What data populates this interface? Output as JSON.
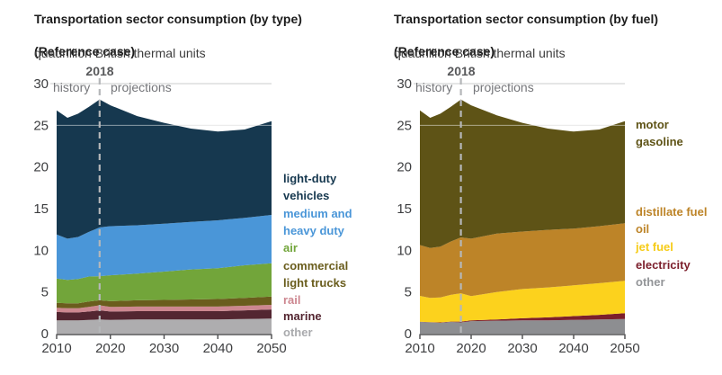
{
  "charts": [
    {
      "title_line1": "Transportation sector consumption (by type)",
      "title_line2": "(Reference case)",
      "subtitle": "quadrillion British thermal units",
      "annotations": {
        "marker_year": "2018",
        "history_label": "history",
        "projections_label": "projections"
      },
      "legend": [
        {
          "label": "light-duty vehicles",
          "color": "#16384f"
        },
        {
          "label": "medium and heavy duty",
          "color": "#4a96d8"
        },
        {
          "label": "air",
          "color": "#72a53a"
        },
        {
          "label": "commercial light trucks",
          "color": "#6a5d1d"
        },
        {
          "label": "rail",
          "color": "#cd8790"
        },
        {
          "label": "marine",
          "color": "#542631"
        },
        {
          "label": "other",
          "color": "#a9aaad"
        }
      ]
    },
    {
      "title_line1": "Transportation sector consumption (by fuel)",
      "title_line2": "(Reference case)",
      "subtitle": "quadrillion British thermal units",
      "annotations": {
        "marker_year": "2018",
        "history_label": "history",
        "projections_label": "projections"
      },
      "legend": [
        {
          "label": "motor gasoline",
          "color": "#5e5316"
        },
        {
          "label": "distillate fuel oil",
          "color": "#bd8428"
        },
        {
          "label": "jet fuel",
          "color": "#f6cc18"
        },
        {
          "label": "electricity",
          "color": "#7c1f2c"
        },
        {
          "label": "other",
          "color": "#939598"
        }
      ]
    }
  ],
  "chart_data": [
    {
      "type": "area",
      "stacked": true,
      "title": "Transportation sector consumption (by type) (Reference case)",
      "units_label": "quadrillion British thermal units",
      "x": [
        2010,
        2012,
        2014,
        2016,
        2018,
        2020,
        2025,
        2030,
        2035,
        2040,
        2045,
        2050
      ],
      "xlim": [
        2010,
        2050
      ],
      "ylim": [
        0,
        30
      ],
      "x_ticks": [
        2010,
        2020,
        2030,
        2040,
        2050
      ],
      "x_tick_labels": [
        "2010",
        "2020",
        "2030",
        "2040",
        "2050"
      ],
      "y_ticks": [
        0,
        5,
        10,
        15,
        20,
        25,
        30
      ],
      "y_tick_labels": [
        "0",
        "5",
        "10",
        "15",
        "20",
        "25",
        "30"
      ],
      "marker_x": 2018,
      "grid": "horizontal",
      "legend_position": "right",
      "series": [
        {
          "name": "other",
          "color": "#aeadaf",
          "values": [
            1.6,
            1.6,
            1.6,
            1.65,
            1.7,
            1.65,
            1.7,
            1.7,
            1.7,
            1.7,
            1.75,
            1.8
          ]
        },
        {
          "name": "marine",
          "color": "#532631",
          "values": [
            1.0,
            0.95,
            0.95,
            1.0,
            1.1,
            1.0,
            1.0,
            1.0,
            1.0,
            1.0,
            1.05,
            1.1
          ]
        },
        {
          "name": "rail",
          "color": "#cd8790",
          "values": [
            0.5,
            0.5,
            0.5,
            0.55,
            0.6,
            0.55,
            0.55,
            0.55,
            0.55,
            0.55,
            0.55,
            0.55
          ]
        },
        {
          "name": "commercial light trucks",
          "color": "#6a5d1d",
          "values": [
            0.6,
            0.6,
            0.6,
            0.65,
            0.6,
            0.7,
            0.75,
            0.8,
            0.85,
            0.9,
            0.95,
            1.0
          ]
        },
        {
          "name": "air",
          "color": "#72a53a",
          "values": [
            2.9,
            2.8,
            2.9,
            3.0,
            2.9,
            3.1,
            3.2,
            3.4,
            3.6,
            3.7,
            3.9,
            4.0
          ]
        },
        {
          "name": "medium and heavy duty",
          "color": "#4a96d8",
          "values": [
            5.3,
            4.95,
            5.05,
            5.35,
            5.85,
            5.9,
            5.8,
            5.75,
            5.7,
            5.75,
            5.7,
            5.8
          ]
        },
        {
          "name": "light-duty vehicles",
          "color": "#16384f",
          "values": [
            14.9,
            14.5,
            14.8,
            15.0,
            15.35,
            14.5,
            13.1,
            12.1,
            11.2,
            10.65,
            10.6,
            11.25
          ]
        }
      ]
    },
    {
      "type": "area",
      "stacked": true,
      "title": "Transportation sector consumption (by fuel) (Reference case)",
      "units_label": "quadrillion British thermal units",
      "x": [
        2010,
        2012,
        2014,
        2016,
        2018,
        2020,
        2025,
        2030,
        2035,
        2040,
        2045,
        2050
      ],
      "xlim": [
        2010,
        2050
      ],
      "ylim": [
        0,
        30
      ],
      "x_ticks": [
        2010,
        2020,
        2030,
        2040,
        2050
      ],
      "x_tick_labels": [
        "2010",
        "2020",
        "2030",
        "2040",
        "2050"
      ],
      "y_ticks": [
        0,
        5,
        10,
        15,
        20,
        25,
        30
      ],
      "y_tick_labels": [
        "0",
        "5",
        "10",
        "15",
        "20",
        "25",
        "30"
      ],
      "marker_x": 2018,
      "grid": "horizontal",
      "legend_position": "right",
      "series": [
        {
          "name": "other",
          "color": "#8d8e91",
          "values": [
            1.4,
            1.35,
            1.3,
            1.4,
            1.35,
            1.5,
            1.55,
            1.6,
            1.6,
            1.65,
            1.7,
            1.75
          ]
        },
        {
          "name": "electricity",
          "color": "#7c1f2c",
          "values": [
            0.03,
            0.03,
            0.05,
            0.05,
            0.1,
            0.1,
            0.15,
            0.25,
            0.35,
            0.45,
            0.55,
            0.7
          ]
        },
        {
          "name": "jet fuel",
          "color": "#fcd21d",
          "values": [
            3.1,
            2.9,
            3.0,
            3.2,
            3.4,
            2.9,
            3.3,
            3.5,
            3.6,
            3.7,
            3.8,
            3.9
          ]
        },
        {
          "name": "distillate fuel oil",
          "color": "#bd8428",
          "values": [
            6.1,
            6.0,
            6.1,
            6.4,
            6.7,
            6.9,
            7.0,
            6.9,
            6.9,
            6.8,
            6.85,
            6.9
          ]
        },
        {
          "name": "motor gasoline",
          "color": "#5e5316",
          "values": [
            16.17,
            15.62,
            15.95,
            16.15,
            16.55,
            16.0,
            14.2,
            13.05,
            12.15,
            11.65,
            11.6,
            12.25
          ]
        }
      ]
    }
  ]
}
